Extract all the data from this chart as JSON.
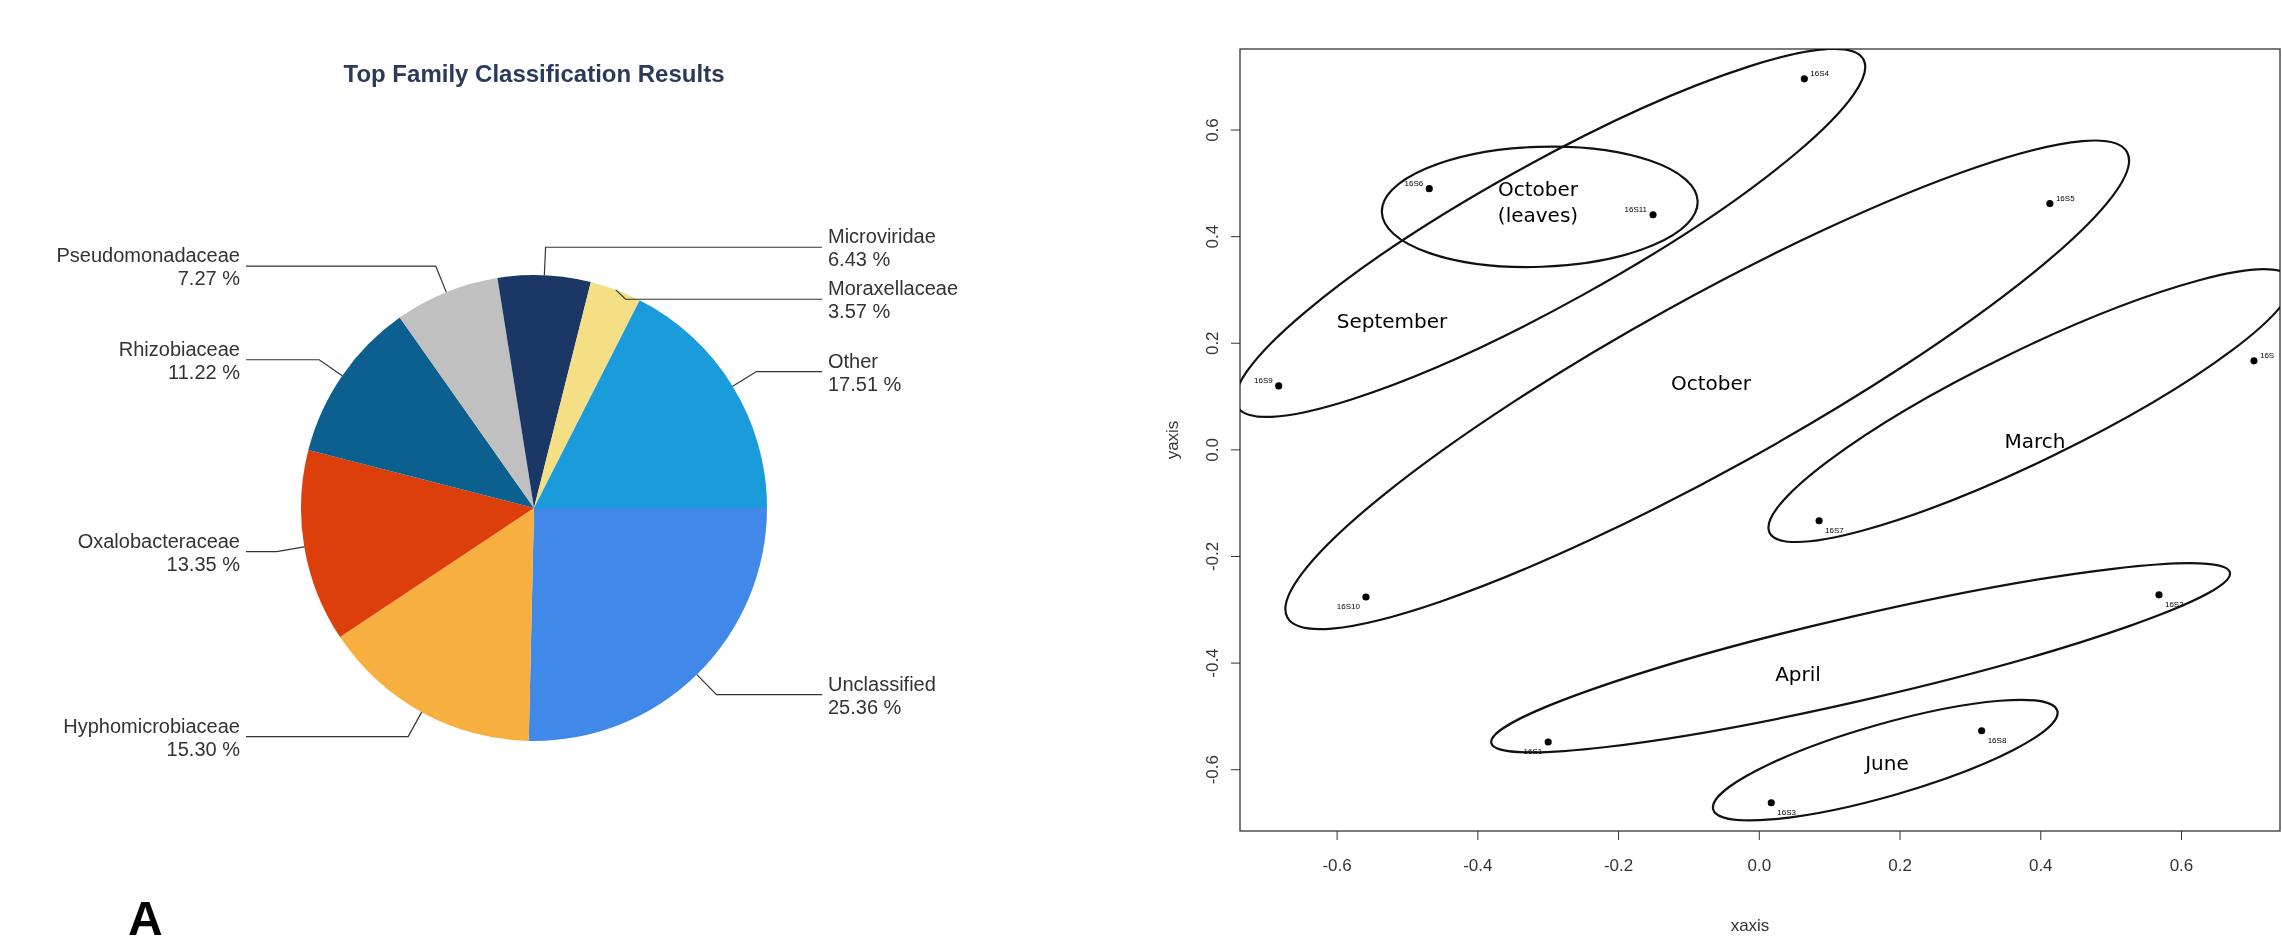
{
  "chart_data": [
    {
      "type": "pie",
      "title": "Top Family Classification Results",
      "categories": [
        "Unclassified",
        "Hyphomicrobiaceae",
        "Oxalobacteraceae",
        "Rhizobiaceae",
        "Pseudomonadaceae",
        "Microviridae",
        "Moraxellaceae",
        "Other"
      ],
      "values": [
        25.36,
        15.3,
        13.35,
        11.22,
        7.27,
        6.43,
        3.57,
        17.51
      ],
      "colors": [
        "#4189e8",
        "#f7b040",
        "#dd3f0b",
        "#0b6090",
        "#c0c0c0",
        "#1a3766",
        "#f5df84",
        "#1a9bdc"
      ],
      "value_labels": [
        "25.36 %",
        "15.30 %",
        "13.35 %",
        "11.22 %",
        "7.27 %",
        "6.43 %",
        "3.57 %",
        "17.51 %"
      ],
      "annotations": [
        "A"
      ]
    },
    {
      "type": "scatter",
      "xlabel": "xaxis",
      "ylabel": "yaxis",
      "xlim": [
        -0.738,
        0.74
      ],
      "ylim": [
        -0.715,
        0.752
      ],
      "xticks": [
        -0.6,
        -0.4,
        -0.2,
        {
          "value": 0,
          "label": "0.0"
        },
        0.2,
        0.4,
        0.6
      ],
      "yticks": [
        -0.6,
        -0.4,
        -0.2,
        {
          "value": 0,
          "label": "0.0"
        },
        0.2,
        0.4,
        0.6
      ],
      "marker": "circle",
      "series": [
        {
          "color": "#000000",
          "x": [
            0.064,
            -0.469,
            -0.151,
            0.413,
            -0.683,
            0.703,
            0.085,
            -0.559,
            0.568,
            -0.3,
            0.316,
            0.017
          ],
          "values": [
            0.696,
            0.49,
            0.441,
            0.462,
            0.12,
            0.167,
            -0.133,
            -0.276,
            -0.272,
            -0.548,
            -0.527,
            -0.662
          ]
        }
      ],
      "annotations": [
        {
          "text": "16S4",
          "x": 0.064,
          "y": 0.696
        },
        {
          "text": "16S6",
          "x": -0.469,
          "y": 0.49
        },
        {
          "text": "16S11",
          "x": -0.151,
          "y": 0.441
        },
        {
          "text": "16S5",
          "x": 0.413,
          "y": 0.462
        },
        {
          "text": "16S9",
          "x": -0.683,
          "y": 0.12
        },
        {
          "text": "16S",
          "x": 0.703,
          "y": 0.167
        },
        {
          "text": "16S7",
          "x": 0.085,
          "y": -0.133
        },
        {
          "text": "16S10",
          "x": -0.559,
          "y": -0.276
        },
        {
          "text": "16S2",
          "x": 0.568,
          "y": -0.272
        },
        {
          "text": "16S1",
          "x": -0.3,
          "y": -0.548
        },
        {
          "text": "16S8",
          "x": 0.316,
          "y": -0.527
        },
        {
          "text": "16S3",
          "x": 0.017,
          "y": -0.662
        },
        "September",
        "October\n(leaves)",
        "October",
        "March",
        "April",
        "June"
      ]
    }
  ]
}
